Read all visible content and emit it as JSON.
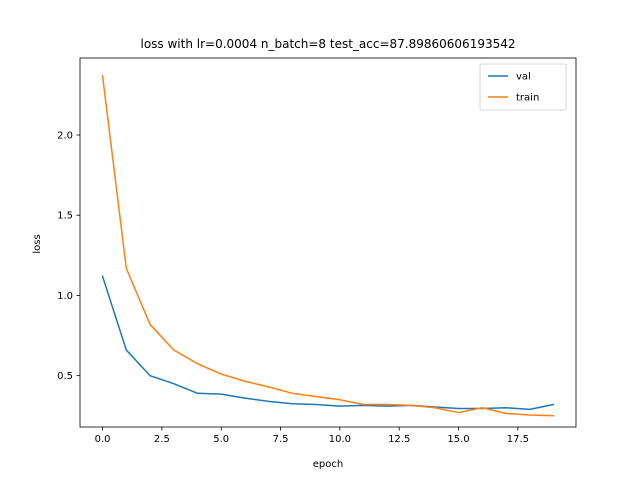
{
  "chart_data": {
    "type": "line",
    "title": "loss with lr=0.0004 n_batch=8 test_acc=87.89860606193542",
    "xlabel": "epoch",
    "ylabel": "loss",
    "xlim": [
      -0.95,
      19.95
    ],
    "ylim": [
      0.18,
      2.48
    ],
    "x": [
      0,
      1,
      2,
      3,
      4,
      5,
      6,
      7,
      8,
      9,
      10,
      11,
      12,
      13,
      14,
      15,
      16,
      17,
      18,
      19
    ],
    "xticks": [
      {
        "value": 0.0,
        "label": "0.0"
      },
      {
        "value": 2.5,
        "label": "2.5"
      },
      {
        "value": 5.0,
        "label": "5.0"
      },
      {
        "value": 7.5,
        "label": "7.5"
      },
      {
        "value": 10.0,
        "label": "10.0"
      },
      {
        "value": 12.5,
        "label": "12.5"
      },
      {
        "value": 15.0,
        "label": "15.0"
      },
      {
        "value": 17.5,
        "label": "17.5"
      }
    ],
    "yticks": [
      {
        "value": 0.5,
        "label": "0.5"
      },
      {
        "value": 1.0,
        "label": "1.0"
      },
      {
        "value": 1.5,
        "label": "1.5"
      },
      {
        "value": 2.0,
        "label": "2.0"
      }
    ],
    "grid": false,
    "legend": "top-right",
    "series": [
      {
        "name": "val",
        "color": "#1f77b4",
        "values": [
          1.12,
          0.66,
          0.5,
          0.45,
          0.39,
          0.385,
          0.36,
          0.34,
          0.325,
          0.32,
          0.31,
          0.315,
          0.31,
          0.315,
          0.305,
          0.295,
          0.295,
          0.3,
          0.29,
          0.32
        ]
      },
      {
        "name": "train",
        "color": "#ff7f0e",
        "values": [
          2.37,
          1.17,
          0.82,
          0.66,
          0.575,
          0.51,
          0.465,
          0.43,
          0.39,
          0.37,
          0.35,
          0.32,
          0.32,
          0.315,
          0.3,
          0.27,
          0.3,
          0.265,
          0.255,
          0.25
        ]
      }
    ]
  }
}
